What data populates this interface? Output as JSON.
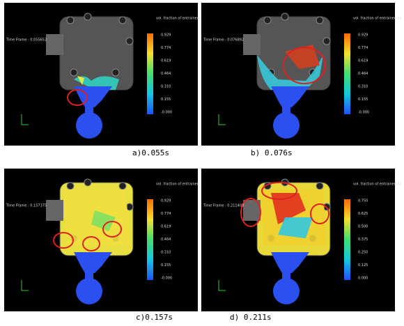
{
  "panels": [
    {
      "time_frame": "Time Frame : 0.055652",
      "legend_title": "vol. fraction of entrained air",
      "legend_ticks": [
        "0.929",
        "0.774",
        "0.619",
        "0.464",
        "0.310",
        "0.155",
        "-0.000"
      ],
      "caption": "a)0.055s"
    },
    {
      "time_frame": "Time Frame : 0.076892",
      "legend_title": "vol. fraction of entrained air",
      "legend_ticks": [
        "0.929",
        "0.774",
        "0.619",
        "0.464",
        "0.310",
        "0.155",
        "-0.000"
      ],
      "caption": "b) 0.076s"
    },
    {
      "time_frame": "Time Frame : 0.157375",
      "legend_title": "vol. fraction of entrained air",
      "legend_ticks": [
        "0.929",
        "0.774",
        "0.619",
        "0.464",
        "0.310",
        "0.155",
        "-0.000"
      ],
      "caption": "c)0.157s"
    },
    {
      "time_frame": "Time Frame : 0.211403",
      "legend_title": "vol. fraction of entrained air",
      "legend_ticks": [
        "0.750",
        "0.625",
        "0.500",
        "0.375",
        "0.250",
        "0.125",
        "0.000"
      ],
      "caption": "d) 0.211s"
    }
  ]
}
